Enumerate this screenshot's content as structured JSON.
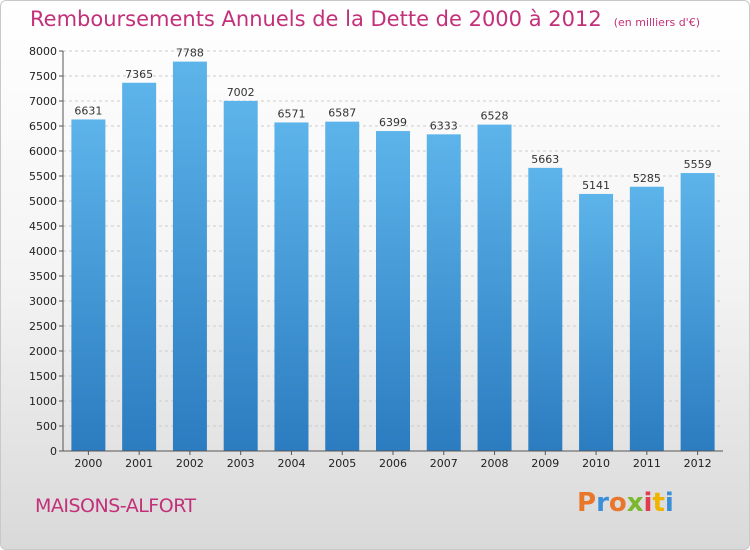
{
  "header": {
    "title": "Remboursements Annuels de la Dette de 2000 à 2012",
    "subtitle": "(en milliers d'€)"
  },
  "footer": {
    "city": "MAISONS-ALFORT",
    "logo_text": "Proxiti",
    "logo_colors": [
      "#e8762b",
      "#3a8fd6",
      "#e8762b",
      "#7ab82e",
      "#e23b4f",
      "#f0b400",
      "#3a8fd6"
    ]
  },
  "colors": {
    "bar_top": "#5db4ea",
    "bar_bottom": "#2b7cc0",
    "grid": "#cccccc",
    "axis": "#555555"
  },
  "chart_data": {
    "type": "bar",
    "title": "Remboursements Annuels de la Dette de 2000 à 2012",
    "subtitle": "(en milliers d'€)",
    "categories": [
      "2000",
      "2001",
      "2002",
      "2003",
      "2004",
      "2005",
      "2006",
      "2007",
      "2008",
      "2009",
      "2010",
      "2011",
      "2012"
    ],
    "values": [
      6631,
      7365,
      7788,
      7002,
      6571,
      6587,
      6399,
      6333,
      6528,
      5663,
      5141,
      5285,
      5559
    ],
    "ylim": [
      0,
      8000
    ],
    "ytick_step": 500,
    "xlabel": "",
    "ylabel": "",
    "grid": true,
    "legend": "none"
  }
}
